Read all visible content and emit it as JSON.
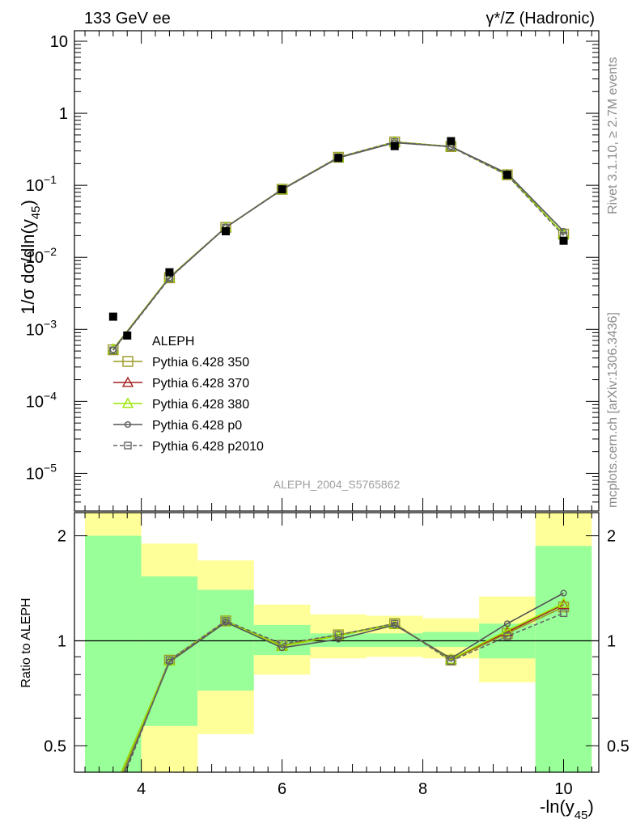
{
  "chart_data": {
    "type": "line",
    "header": {
      "left": "133 GeV ee",
      "right": "γ*/Z (Hadronic)"
    },
    "side_labels": {
      "rivet": "Rivet 3.1.10, ≥ 2.7M events",
      "mcplots": "mcplots.cern.ch [arXiv:1306.3436]"
    },
    "analysis_id": "ALEPH_2004_S5765862",
    "xlabel": "-ln(y45)",
    "ylabel": "1/σ dσ/dln(y45)",
    "ratio_ylabel": "Ratio to ALEPH",
    "xlim": [
      3.05,
      10.5
    ],
    "ylim_main": [
      3e-06,
      14
    ],
    "ylim_ratio": [
      0.42,
      2.33
    ],
    "y_scale_main": "log",
    "y_scale_ratio": "log",
    "x_ticks": [
      4,
      6,
      8,
      10
    ],
    "y_tick_labels_main": [
      "10",
      "1",
      "10-1",
      "10-2",
      "10-3",
      "10-4",
      "10-5"
    ],
    "ratio_tick_labels": [
      "0.5",
      "1",
      "2"
    ],
    "legend": {
      "position": "lower-left",
      "entries": [
        "ALEPH",
        "Pythia 6.428 350",
        "Pythia 6.428 370",
        "Pythia 6.428 380",
        "Pythia 6.428 p0",
        "Pythia 6.428 p2010"
      ]
    },
    "data": {
      "name": "ALEPH",
      "x": [
        3.6,
        3.8,
        4.4,
        5.2,
        6.0,
        6.8,
        7.6,
        8.4,
        9.2,
        10.0
      ],
      "y": [
        0.0015,
        0.00082,
        0.0062,
        0.023,
        0.088,
        0.24,
        0.35,
        0.41,
        0.14,
        0.017
      ]
    },
    "bands": [
      {
        "x": [
          3.2,
          4.0
        ],
        "stat": [
          0.28,
          2.0
        ],
        "total": [
          0.2,
          2.6
        ]
      },
      {
        "x": [
          4.0,
          4.8
        ],
        "stat": [
          0.57,
          1.53
        ],
        "total": [
          0.41,
          1.9
        ]
      },
      {
        "x": [
          4.8,
          5.6
        ],
        "stat": [
          0.72,
          1.4
        ],
        "total": [
          0.54,
          1.7
        ]
      },
      {
        "x": [
          5.6,
          6.4
        ],
        "stat": [
          0.91,
          1.11
        ],
        "total": [
          0.8,
          1.27
        ]
      },
      {
        "x": [
          6.4,
          7.2
        ],
        "stat": [
          0.96,
          1.05
        ],
        "total": [
          0.89,
          1.19
        ]
      },
      {
        "x": [
          7.2,
          8.0
        ],
        "stat": [
          0.96,
          1.05
        ],
        "total": [
          0.9,
          1.18
        ]
      },
      {
        "x": [
          8.0,
          8.8
        ],
        "stat": [
          0.96,
          1.06
        ],
        "total": [
          0.89,
          1.16
        ]
      },
      {
        "x": [
          8.8,
          9.6
        ],
        "stat": [
          0.89,
          1.12
        ],
        "total": [
          0.76,
          1.34
        ]
      },
      {
        "x": [
          9.6,
          10.4
        ],
        "stat": [
          0.35,
          1.87
        ],
        "total": [
          0.25,
          2.5
        ]
      }
    ],
    "series": [
      {
        "name": "Pythia 6.428 350",
        "color": "#9a9a22",
        "marker": "square",
        "dash": false,
        "x": [
          3.6,
          4.4,
          5.2,
          6.0,
          6.8,
          7.6,
          8.4,
          9.2,
          10.0
        ],
        "y": [
          0.00052,
          0.0052,
          0.026,
          0.088,
          0.245,
          0.4,
          0.345,
          0.14,
          0.021
        ],
        "ratio_x": [
          3.6,
          4.4,
          5.2,
          6.0,
          6.8,
          7.6,
          8.4,
          9.2,
          10.0
        ],
        "ratio": [
          0.36,
          0.88,
          1.14,
          0.97,
          1.04,
          1.12,
          0.88,
          1.05,
          1.25
        ]
      },
      {
        "name": "Pythia 6.428 370",
        "color": "#a31f1f",
        "marker": "triangle",
        "dash": false,
        "x": [
          3.6,
          4.4,
          5.2,
          6.0,
          6.8,
          7.6,
          8.4,
          9.2,
          10.0
        ],
        "y": [
          0.00053,
          0.0053,
          0.026,
          0.088,
          0.244,
          0.4,
          0.345,
          0.14,
          0.021
        ],
        "ratio_x": [
          3.6,
          4.4,
          5.2,
          6.0,
          6.8,
          7.6,
          8.4,
          9.2,
          10.0
        ],
        "ratio": [
          0.37,
          0.875,
          1.14,
          0.965,
          1.035,
          1.115,
          0.885,
          1.06,
          1.27
        ]
      },
      {
        "name": "Pythia 6.428 380",
        "color": "#99e600",
        "marker": "triangle",
        "dash": false,
        "x": [
          3.6,
          4.4,
          5.2,
          6.0,
          6.8,
          7.6,
          8.4,
          9.2,
          10.0
        ],
        "y": [
          0.00053,
          0.0053,
          0.026,
          0.088,
          0.244,
          0.4,
          0.345,
          0.14,
          0.021
        ],
        "ratio_x": [
          3.6,
          4.4,
          5.2,
          6.0,
          6.8,
          7.6,
          8.4,
          9.2,
          10.0
        ],
        "ratio": [
          0.37,
          0.875,
          1.14,
          0.965,
          1.035,
          1.115,
          0.885,
          1.07,
          1.28
        ]
      },
      {
        "name": "Pythia 6.428 p0",
        "color": "#555555",
        "marker": "circle",
        "dash": false,
        "x": [
          3.6,
          4.4,
          5.2,
          6.0,
          6.8,
          7.6,
          8.4,
          9.2,
          10.0
        ],
        "y": [
          0.00052,
          0.0052,
          0.026,
          0.087,
          0.24,
          0.39,
          0.345,
          0.146,
          0.023
        ],
        "ratio_x": [
          3.6,
          4.4,
          5.2,
          6.0,
          6.8,
          7.6,
          8.4,
          9.2,
          10.0
        ],
        "ratio": [
          0.35,
          0.87,
          1.13,
          0.955,
          1.01,
          1.11,
          0.89,
          1.12,
          1.37
        ]
      },
      {
        "name": "Pythia 6.428 p2010",
        "color": "#666666",
        "marker": "square",
        "dash": true,
        "x": [
          3.6,
          4.4,
          5.2,
          6.0,
          6.8,
          7.6,
          8.4,
          9.2,
          10.0
        ],
        "y": [
          0.00051,
          0.0051,
          0.026,
          0.088,
          0.245,
          0.4,
          0.34,
          0.138,
          0.02
        ],
        "ratio_x": [
          3.6,
          4.4,
          5.2,
          6.0,
          6.8,
          7.6,
          8.4,
          9.2,
          10.0
        ],
        "ratio": [
          0.34,
          0.88,
          1.14,
          0.98,
          1.04,
          1.12,
          0.875,
          1.03,
          1.2
        ]
      }
    ]
  }
}
